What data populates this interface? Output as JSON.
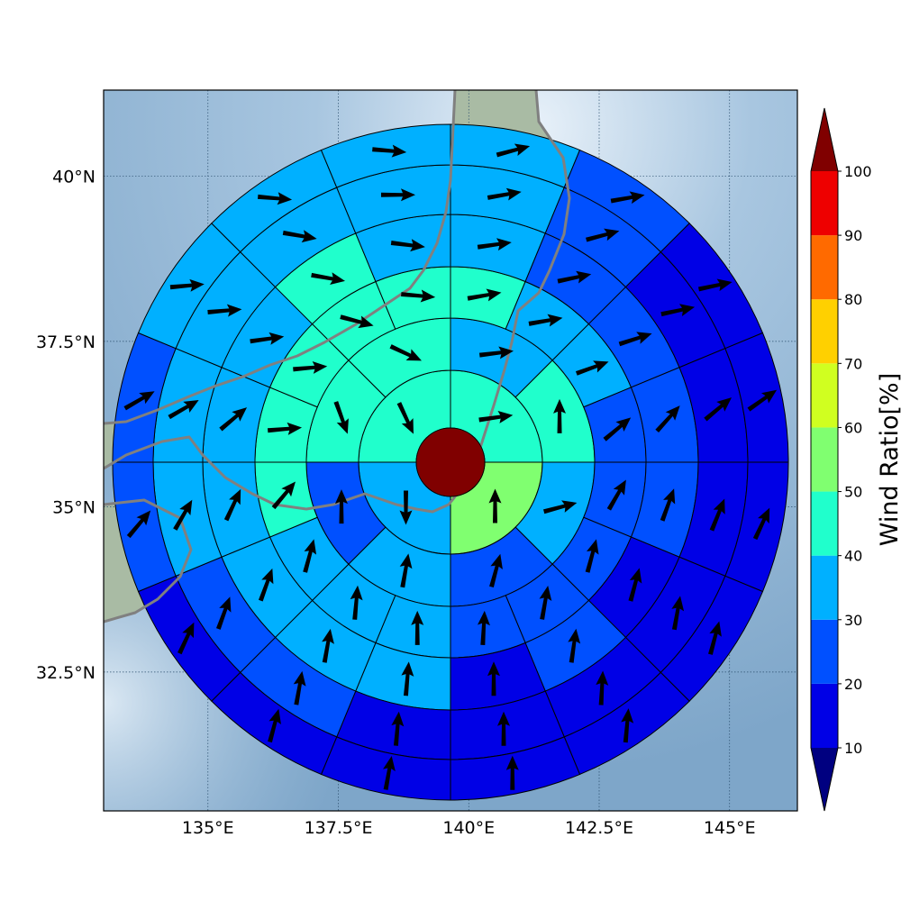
{
  "map": {
    "lon_range": [
      133.0,
      146.3
    ],
    "lat_range": [
      30.4,
      41.3
    ],
    "x_ticks": [
      {
        "value": 135.0,
        "label": "135°E"
      },
      {
        "value": 137.5,
        "label": "137.5°E"
      },
      {
        "value": 140.0,
        "label": "140°E"
      },
      {
        "value": 142.5,
        "label": "142.5°E"
      },
      {
        "value": 145.0,
        "label": "145°E"
      }
    ],
    "y_ticks": [
      {
        "value": 32.5,
        "label": "32.5°N"
      },
      {
        "value": 35.0,
        "label": "35°N"
      },
      {
        "value": 37.5,
        "label": "37.5°N"
      },
      {
        "value": 40.0,
        "label": "40°N"
      }
    ],
    "grid": true,
    "coastline_color": "#808080",
    "ocean_color": "#8fb4d4",
    "land_color": "#a9bba4"
  },
  "colorbar": {
    "title": "Wind Ratio[%]",
    "levels": [
      10,
      20,
      30,
      40,
      50,
      60,
      70,
      80,
      90,
      100
    ],
    "colors": [
      "#0000e6",
      "#0050ff",
      "#00b0ff",
      "#20ffcc",
      "#80ff70",
      "#d0ff20",
      "#ffd000",
      "#ff6a00",
      "#ee0000"
    ],
    "under_color": "#000080",
    "over_color": "#800000",
    "labels": [
      "10",
      "20",
      "30",
      "40",
      "50",
      "60",
      "70",
      "80",
      "90",
      "100"
    ]
  },
  "chart_data": {
    "type": "polar-grid-vector-map",
    "center_color": "#800000",
    "ring_sectors": [
      4,
      8,
      16,
      16,
      16,
      16
    ],
    "ring_values": [
      [
        45,
        55,
        33,
        44
      ],
      [
        33,
        46,
        33,
        25,
        32,
        28,
        46,
        42
      ],
      [
        42,
        36,
        30,
        26,
        24,
        22,
        21,
        24,
        30,
        33,
        33,
        40,
        45,
        48,
        48,
        46
      ],
      [
        30,
        28,
        27,
        22,
        21,
        16,
        20,
        18,
        33,
        33,
        33,
        35,
        38,
        33,
        42,
        34
      ],
      [
        32,
        20,
        14,
        18,
        18,
        19,
        15,
        13,
        16,
        22,
        22,
        33,
        33,
        34,
        34,
        32
      ],
      [
        33,
        22,
        14,
        12,
        12,
        12,
        14,
        14,
        14,
        14,
        18,
        20,
        24,
        33,
        33,
        33
      ]
    ],
    "ring_directions": [
      [
        82,
        0,
        180,
        155
      ],
      [
        83,
        0,
        75,
        15,
        10,
        0,
        160,
        115
      ],
      [
        80,
        80,
        70,
        50,
        30,
        15,
        10,
        3,
        0,
        5,
        15,
        40,
        85,
        85,
        105,
        95
      ],
      [
        82,
        78,
        72,
        42,
        20,
        15,
        8,
        0,
        5,
        10,
        20,
        25,
        50,
        82,
        100,
        97
      ],
      [
        80,
        75,
        78,
        50,
        22,
        10,
        3,
        0,
        5,
        10,
        20,
        30,
        60,
        85,
        100,
        90
      ],
      [
        75,
        80,
        78,
        55,
        25,
        15,
        5,
        0,
        10,
        15,
        25,
        40,
        60,
        85,
        95,
        95
      ]
    ]
  }
}
